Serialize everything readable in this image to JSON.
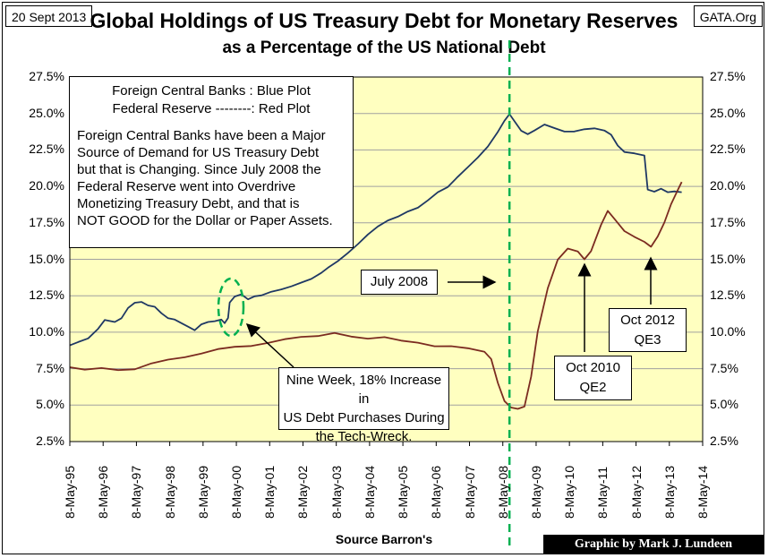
{
  "header": {
    "date": "20 Sept 2013",
    "site": "GATA.Org",
    "title_line1": "Global Holdings of US Treasury Debt for Monetary Reserves",
    "title_line2": "as a Percentage of the US National Debt"
  },
  "legend_box": {
    "line1": "Foreign Central Banks : Blue Plot",
    "line2": "Federal Reserve --------: Red Plot",
    "body_lines": [
      "Foreign Central Banks have been a Major",
      "Source of Demand for US Treasury Debt",
      "but that is Changing.  Since July 2008 the",
      "Federal Reserve went into Overdrive",
      "Monetizing Treasury Debt, and that is",
      "NOT GOOD for the Dollar or Paper Assets."
    ]
  },
  "annotations": {
    "july2008": "July 2008",
    "techwreck_lines": [
      "Nine Week, 18% Increase in",
      "US Debt Purchases During",
      "the Tech-Wreck."
    ],
    "qe2_lines": [
      "Oct 2010",
      "QE2"
    ],
    "qe3_lines": [
      "Oct 2012",
      "QE3"
    ]
  },
  "footer": {
    "source": "Source Barron's",
    "credit": "Graphic by Mark J. Lundeen"
  },
  "colors": {
    "plot_bg": "#ffffc0",
    "grid": "#a0a0a0",
    "foreign_cb": "#1f3864",
    "fed": "#7b2b20",
    "marker": "#00b050"
  },
  "chart_data": {
    "type": "line",
    "x_tick_labels": [
      "8-May-95",
      "8-May-96",
      "8-May-97",
      "8-May-98",
      "8-May-99",
      "8-May-00",
      "8-May-01",
      "8-May-02",
      "8-May-03",
      "8-May-04",
      "8-May-05",
      "8-May-06",
      "8-May-07",
      "8-May-08",
      "8-May-09",
      "8-May-10",
      "8-May-11",
      "8-May-12",
      "8-May-13",
      "8-May-14"
    ],
    "xlim": [
      1995.35,
      2014.35
    ],
    "y_tick_labels": [
      "2.5%",
      "5.0%",
      "7.5%",
      "10.0%",
      "12.5%",
      "15.0%",
      "17.5%",
      "20.0%",
      "22.5%",
      "25.0%",
      "27.5%"
    ],
    "ylim": [
      2.5,
      27.5
    ],
    "grid": true,
    "marker_x": 2008.55,
    "series": [
      {
        "color_key": "foreign_cb",
        "points": [
          [
            1995.35,
            9.1
          ],
          [
            1995.6,
            9.3
          ],
          [
            1995.9,
            9.6
          ],
          [
            1996.2,
            10.3
          ],
          [
            1996.4,
            10.8
          ],
          [
            1996.7,
            10.7
          ],
          [
            1996.9,
            11.0
          ],
          [
            1997.1,
            11.6
          ],
          [
            1997.3,
            12.0
          ],
          [
            1997.5,
            12.1
          ],
          [
            1997.7,
            11.9
          ],
          [
            1997.9,
            11.7
          ],
          [
            1998.1,
            11.3
          ],
          [
            1998.3,
            11.0
          ],
          [
            1998.5,
            10.8
          ],
          [
            1998.7,
            10.6
          ],
          [
            1998.9,
            10.4
          ],
          [
            1999.1,
            10.2
          ],
          [
            1999.3,
            10.5
          ],
          [
            1999.5,
            10.7
          ],
          [
            1999.7,
            10.8
          ],
          [
            1999.9,
            10.8
          ],
          [
            2000.0,
            10.6
          ],
          [
            2000.1,
            11.0
          ],
          [
            2000.15,
            12.1
          ],
          [
            2000.3,
            12.4
          ],
          [
            2000.5,
            12.6
          ],
          [
            2000.7,
            12.3
          ],
          [
            2000.9,
            12.4
          ],
          [
            2001.1,
            12.5
          ],
          [
            2001.4,
            12.8
          ],
          [
            2001.7,
            13.0
          ],
          [
            2002.0,
            13.1
          ],
          [
            2002.3,
            13.4
          ],
          [
            2002.6,
            13.7
          ],
          [
            2002.9,
            14.0
          ],
          [
            2003.1,
            14.4
          ],
          [
            2003.4,
            14.9
          ],
          [
            2003.7,
            15.5
          ],
          [
            2004.0,
            16.0
          ],
          [
            2004.3,
            16.7
          ],
          [
            2004.6,
            17.3
          ],
          [
            2004.9,
            17.6
          ],
          [
            2005.2,
            17.9
          ],
          [
            2005.5,
            18.3
          ],
          [
            2005.8,
            18.6
          ],
          [
            2006.1,
            19.0
          ],
          [
            2006.4,
            19.6
          ],
          [
            2006.7,
            20.0
          ],
          [
            2007.0,
            20.6
          ],
          [
            2007.3,
            21.3
          ],
          [
            2007.6,
            22.0
          ],
          [
            2007.9,
            22.8
          ],
          [
            2008.2,
            23.7
          ],
          [
            2008.4,
            24.5
          ],
          [
            2008.55,
            25.0
          ],
          [
            2008.7,
            24.4
          ],
          [
            2008.9,
            23.8
          ],
          [
            2009.1,
            23.6
          ],
          [
            2009.3,
            23.9
          ],
          [
            2009.6,
            24.2
          ],
          [
            2009.9,
            24.0
          ],
          [
            2010.2,
            23.8
          ],
          [
            2010.5,
            23.7
          ],
          [
            2010.8,
            23.9
          ],
          [
            2011.1,
            24.0
          ],
          [
            2011.4,
            23.9
          ],
          [
            2011.6,
            23.5
          ],
          [
            2011.8,
            22.8
          ],
          [
            2012.0,
            22.4
          ],
          [
            2012.3,
            22.2
          ],
          [
            2012.6,
            22.1
          ],
          [
            2012.7,
            19.8
          ],
          [
            2012.9,
            19.7
          ],
          [
            2013.1,
            19.8
          ],
          [
            2013.3,
            19.6
          ],
          [
            2013.5,
            19.7
          ],
          [
            2013.72,
            19.6
          ]
        ]
      },
      {
        "color_key": "fed",
        "points": [
          [
            1995.35,
            7.6
          ],
          [
            1995.8,
            7.5
          ],
          [
            1996.3,
            7.5
          ],
          [
            1996.8,
            7.4
          ],
          [
            1997.3,
            7.5
          ],
          [
            1997.8,
            7.8
          ],
          [
            1998.3,
            8.1
          ],
          [
            1998.8,
            8.3
          ],
          [
            1999.3,
            8.6
          ],
          [
            1999.8,
            8.8
          ],
          [
            2000.3,
            9.0
          ],
          [
            2000.8,
            9.1
          ],
          [
            2001.3,
            9.2
          ],
          [
            2001.8,
            9.5
          ],
          [
            2002.3,
            9.7
          ],
          [
            2002.8,
            9.8
          ],
          [
            2003.3,
            9.9
          ],
          [
            2003.8,
            9.7
          ],
          [
            2004.3,
            9.6
          ],
          [
            2004.8,
            9.6
          ],
          [
            2005.3,
            9.4
          ],
          [
            2005.8,
            9.3
          ],
          [
            2006.3,
            9.1
          ],
          [
            2006.8,
            9.0
          ],
          [
            2007.3,
            8.9
          ],
          [
            2007.8,
            8.7
          ],
          [
            2008.0,
            8.1
          ],
          [
            2008.2,
            6.5
          ],
          [
            2008.4,
            5.3
          ],
          [
            2008.6,
            4.9
          ],
          [
            2008.8,
            4.7
          ],
          [
            2009.0,
            4.9
          ],
          [
            2009.2,
            7.0
          ],
          [
            2009.4,
            10.0
          ],
          [
            2009.7,
            13.0
          ],
          [
            2010.0,
            15.0
          ],
          [
            2010.3,
            15.8
          ],
          [
            2010.6,
            15.5
          ],
          [
            2010.8,
            15.0
          ],
          [
            2011.0,
            15.6
          ],
          [
            2011.3,
            17.3
          ],
          [
            2011.5,
            18.3
          ],
          [
            2011.7,
            17.8
          ],
          [
            2012.0,
            17.0
          ],
          [
            2012.3,
            16.5
          ],
          [
            2012.6,
            16.2
          ],
          [
            2012.8,
            15.9
          ],
          [
            2013.0,
            16.5
          ],
          [
            2013.2,
            17.5
          ],
          [
            2013.4,
            18.8
          ],
          [
            2013.6,
            19.8
          ],
          [
            2013.72,
            20.3
          ]
        ]
      }
    ]
  }
}
